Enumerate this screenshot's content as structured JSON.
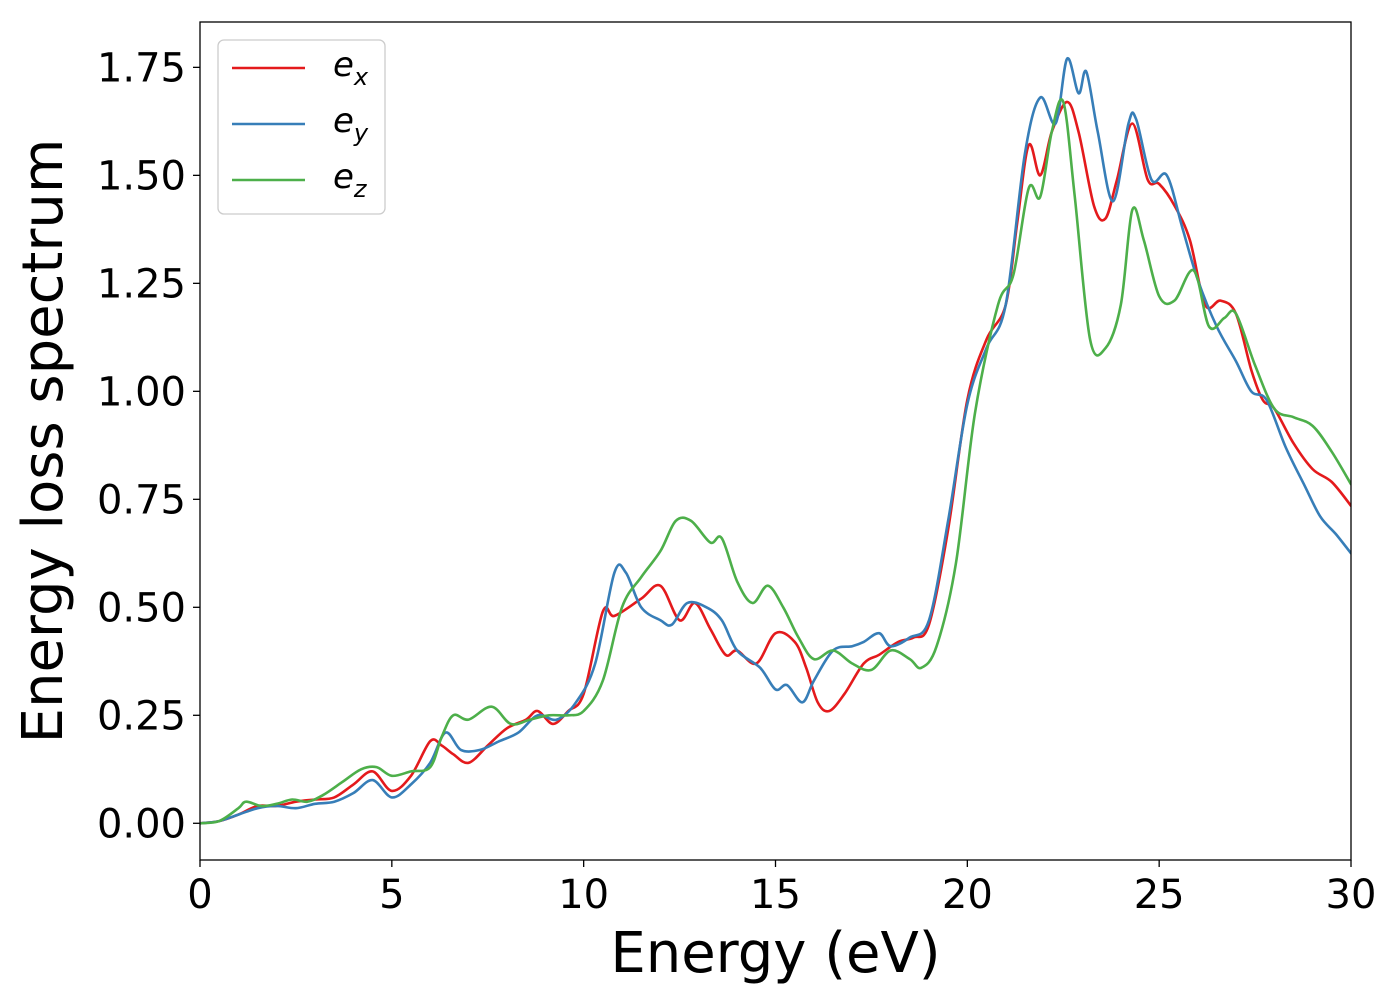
{
  "chart_data": {
    "type": "line",
    "title": "",
    "xlabel": "Energy (eV)",
    "ylabel": "Energy loss spectrum",
    "xlim": [
      0,
      30
    ],
    "ylim": [
      -0.085,
      1.855
    ],
    "xticks": [
      0,
      5,
      10,
      15,
      20,
      25,
      30
    ],
    "yticks": [
      0,
      0.25,
      0.5,
      0.75,
      1.0,
      1.25,
      1.5,
      1.75
    ],
    "xtick_labels": [
      "0",
      "5",
      "10",
      "15",
      "20",
      "25",
      "30"
    ],
    "ytick_labels": [
      "0.00",
      "0.25",
      "0.50",
      "0.75",
      "1.00",
      "1.25",
      "1.50",
      "1.75"
    ],
    "grid": false,
    "legend_position": "top-left",
    "series": [
      {
        "name": "e",
        "subscript": "x",
        "color": "#e41a1c",
        "points": [
          [
            0,
            0
          ],
          [
            0.5,
            0.005
          ],
          [
            1,
            0.02
          ],
          [
            1.5,
            0.04
          ],
          [
            2,
            0.04
          ],
          [
            2.5,
            0.05
          ],
          [
            3,
            0.055
          ],
          [
            3.5,
            0.06
          ],
          [
            4,
            0.09
          ],
          [
            4.5,
            0.12
          ],
          [
            5,
            0.075
          ],
          [
            5.5,
            0.11
          ],
          [
            6,
            0.19
          ],
          [
            6.3,
            0.18
          ],
          [
            6.6,
            0.16
          ],
          [
            7,
            0.14
          ],
          [
            7.5,
            0.18
          ],
          [
            8,
            0.22
          ],
          [
            8.5,
            0.24
          ],
          [
            8.8,
            0.26
          ],
          [
            9.2,
            0.23
          ],
          [
            9.6,
            0.26
          ],
          [
            10,
            0.3
          ],
          [
            10.5,
            0.49
          ],
          [
            10.8,
            0.48
          ],
          [
            11.5,
            0.52
          ],
          [
            12,
            0.55
          ],
          [
            12.5,
            0.47
          ],
          [
            12.9,
            0.51
          ],
          [
            13.3,
            0.45
          ],
          [
            13.7,
            0.39
          ],
          [
            14,
            0.4
          ],
          [
            14.5,
            0.37
          ],
          [
            15,
            0.44
          ],
          [
            15.5,
            0.42
          ],
          [
            15.8,
            0.36
          ],
          [
            16.1,
            0.28
          ],
          [
            16.4,
            0.26
          ],
          [
            16.8,
            0.3
          ],
          [
            17.3,
            0.37
          ],
          [
            17.7,
            0.39
          ],
          [
            18.2,
            0.42
          ],
          [
            18.6,
            0.43
          ],
          [
            19,
            0.46
          ],
          [
            19.5,
            0.68
          ],
          [
            20,
            0.98
          ],
          [
            20.5,
            1.12
          ],
          [
            21,
            1.2
          ],
          [
            21.3,
            1.39
          ],
          [
            21.6,
            1.57
          ],
          [
            21.9,
            1.5
          ],
          [
            22.2,
            1.6
          ],
          [
            22.6,
            1.67
          ],
          [
            22.9,
            1.6
          ],
          [
            23.3,
            1.43
          ],
          [
            23.6,
            1.4
          ],
          [
            23.9,
            1.49
          ],
          [
            24.3,
            1.62
          ],
          [
            24.7,
            1.49
          ],
          [
            25,
            1.48
          ],
          [
            25.4,
            1.43
          ],
          [
            25.8,
            1.35
          ],
          [
            26.2,
            1.2
          ],
          [
            26.6,
            1.21
          ],
          [
            27,
            1.18
          ],
          [
            27.4,
            1.05
          ],
          [
            27.7,
            0.98
          ],
          [
            28,
            0.96
          ],
          [
            28.5,
            0.88
          ],
          [
            29,
            0.82
          ],
          [
            29.5,
            0.79
          ],
          [
            30,
            0.735
          ]
        ]
      },
      {
        "name": "e",
        "subscript": "y",
        "color": "#377eb8",
        "points": [
          [
            0,
            0
          ],
          [
            0.5,
            0.005
          ],
          [
            1,
            0.02
          ],
          [
            1.5,
            0.035
          ],
          [
            2,
            0.04
          ],
          [
            2.5,
            0.035
          ],
          [
            3,
            0.045
          ],
          [
            3.5,
            0.05
          ],
          [
            4,
            0.07
          ],
          [
            4.5,
            0.1
          ],
          [
            5,
            0.06
          ],
          [
            5.5,
            0.09
          ],
          [
            6,
            0.14
          ],
          [
            6.4,
            0.21
          ],
          [
            6.8,
            0.17
          ],
          [
            7.3,
            0.17
          ],
          [
            7.8,
            0.19
          ],
          [
            8.3,
            0.21
          ],
          [
            8.8,
            0.25
          ],
          [
            9.3,
            0.24
          ],
          [
            9.8,
            0.28
          ],
          [
            10.3,
            0.37
          ],
          [
            10.8,
            0.58
          ],
          [
            11.1,
            0.58
          ],
          [
            11.5,
            0.5
          ],
          [
            12,
            0.47
          ],
          [
            12.3,
            0.46
          ],
          [
            12.7,
            0.51
          ],
          [
            13.2,
            0.5
          ],
          [
            13.6,
            0.47
          ],
          [
            14,
            0.4
          ],
          [
            14.6,
            0.36
          ],
          [
            15,
            0.31
          ],
          [
            15.3,
            0.32
          ],
          [
            15.7,
            0.28
          ],
          [
            16,
            0.33
          ],
          [
            16.5,
            0.4
          ],
          [
            17,
            0.41
          ],
          [
            17.3,
            0.42
          ],
          [
            17.7,
            0.44
          ],
          [
            18,
            0.41
          ],
          [
            18.5,
            0.43
          ],
          [
            19,
            0.47
          ],
          [
            19.5,
            0.7
          ],
          [
            20,
            0.97
          ],
          [
            20.5,
            1.1
          ],
          [
            21,
            1.2
          ],
          [
            21.5,
            1.55
          ],
          [
            21.9,
            1.68
          ],
          [
            22.3,
            1.62
          ],
          [
            22.6,
            1.77
          ],
          [
            22.9,
            1.69
          ],
          [
            23.1,
            1.74
          ],
          [
            23.4,
            1.6
          ],
          [
            23.8,
            1.44
          ],
          [
            24.2,
            1.62
          ],
          [
            24.4,
            1.63
          ],
          [
            24.8,
            1.49
          ],
          [
            25.2,
            1.5
          ],
          [
            25.6,
            1.38
          ],
          [
            26,
            1.26
          ],
          [
            26.5,
            1.15
          ],
          [
            27,
            1.07
          ],
          [
            27.4,
            1.0
          ],
          [
            27.8,
            0.98
          ],
          [
            28.3,
            0.87
          ],
          [
            28.8,
            0.78
          ],
          [
            29.2,
            0.71
          ],
          [
            29.6,
            0.67
          ],
          [
            30,
            0.625
          ]
        ]
      },
      {
        "name": "e",
        "subscript": "z",
        "color": "#4daf4a",
        "points": [
          [
            0,
            0
          ],
          [
            0.5,
            0.005
          ],
          [
            1,
            0.035
          ],
          [
            1.2,
            0.05
          ],
          [
            1.6,
            0.04
          ],
          [
            2,
            0.045
          ],
          [
            2.4,
            0.055
          ],
          [
            2.8,
            0.05
          ],
          [
            3.2,
            0.065
          ],
          [
            3.7,
            0.095
          ],
          [
            4.2,
            0.125
          ],
          [
            4.6,
            0.13
          ],
          [
            5,
            0.11
          ],
          [
            5.5,
            0.12
          ],
          [
            6,
            0.13
          ],
          [
            6.3,
            0.2
          ],
          [
            6.6,
            0.25
          ],
          [
            7,
            0.24
          ],
          [
            7.6,
            0.27
          ],
          [
            8.1,
            0.23
          ],
          [
            8.6,
            0.24
          ],
          [
            9.1,
            0.25
          ],
          [
            9.6,
            0.25
          ],
          [
            10,
            0.26
          ],
          [
            10.5,
            0.33
          ],
          [
            11,
            0.5
          ],
          [
            11.5,
            0.57
          ],
          [
            12,
            0.63
          ],
          [
            12.4,
            0.7
          ],
          [
            12.8,
            0.7
          ],
          [
            13.3,
            0.65
          ],
          [
            13.6,
            0.66
          ],
          [
            14,
            0.56
          ],
          [
            14.4,
            0.51
          ],
          [
            14.8,
            0.55
          ],
          [
            15.2,
            0.5
          ],
          [
            15.6,
            0.43
          ],
          [
            16,
            0.38
          ],
          [
            16.5,
            0.4
          ],
          [
            17,
            0.37
          ],
          [
            17.5,
            0.355
          ],
          [
            18,
            0.4
          ],
          [
            18.5,
            0.38
          ],
          [
            18.8,
            0.36
          ],
          [
            19.2,
            0.41
          ],
          [
            19.7,
            0.6
          ],
          [
            20.2,
            0.95
          ],
          [
            20.8,
            1.2
          ],
          [
            21.2,
            1.27
          ],
          [
            21.6,
            1.47
          ],
          [
            21.9,
            1.45
          ],
          [
            22.2,
            1.6
          ],
          [
            22.5,
            1.67
          ],
          [
            22.8,
            1.45
          ],
          [
            23.2,
            1.12
          ],
          [
            23.6,
            1.1
          ],
          [
            24,
            1.2
          ],
          [
            24.3,
            1.42
          ],
          [
            24.6,
            1.35
          ],
          [
            25,
            1.22
          ],
          [
            25.4,
            1.21
          ],
          [
            25.9,
            1.28
          ],
          [
            26.3,
            1.15
          ],
          [
            26.7,
            1.17
          ],
          [
            27,
            1.18
          ],
          [
            27.5,
            1.06
          ],
          [
            28,
            0.96
          ],
          [
            28.5,
            0.94
          ],
          [
            29,
            0.92
          ],
          [
            29.5,
            0.86
          ],
          [
            30,
            0.785
          ]
        ]
      }
    ]
  }
}
